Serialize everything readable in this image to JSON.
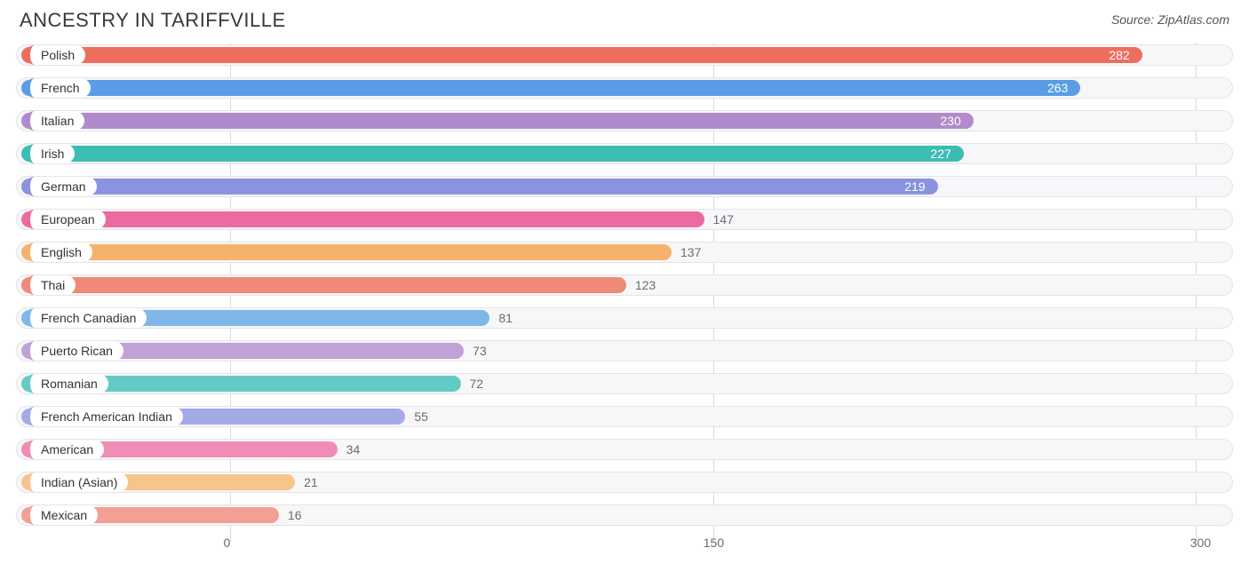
{
  "title": "ANCESTRY IN TARIFFVILLE",
  "source_label": "Source: ZipAtlas.com",
  "chart": {
    "type": "bar-horizontal",
    "x_min": -65,
    "x_max": 310,
    "track_bg": "#f7f7f9",
    "track_border": "#e4e4e8",
    "pill_bg": "#ffffff",
    "value_inside_color": "#ffffff",
    "value_outside_color": "#6b6b70",
    "title_color": "#38383a",
    "axis_color": "#6b6b70",
    "gridline_color": "#d9d9de",
    "title_fontsize": 22,
    "label_fontsize": 14,
    "ticks": [
      0,
      150,
      300
    ],
    "rows": [
      {
        "label": "Polish",
        "value": 282,
        "color": "#ed6e5f"
      },
      {
        "label": "French",
        "value": 263,
        "color": "#5a9de6"
      },
      {
        "label": "Italian",
        "value": 230,
        "color": "#b18acb"
      },
      {
        "label": "Irish",
        "value": 227,
        "color": "#3bbdb3"
      },
      {
        "label": "German",
        "value": 219,
        "color": "#8a93e0"
      },
      {
        "label": "European",
        "value": 147,
        "color": "#ed6aa0"
      },
      {
        "label": "English",
        "value": 137,
        "color": "#f4b36b"
      },
      {
        "label": "Thai",
        "value": 123,
        "color": "#ee8a77"
      },
      {
        "label": "French Canadian",
        "value": 81,
        "color": "#7fb7ea"
      },
      {
        "label": "Puerto Rican",
        "value": 73,
        "color": "#c0a2d6"
      },
      {
        "label": "Romanian",
        "value": 72,
        "color": "#63cbc3"
      },
      {
        "label": "French American Indian",
        "value": 55,
        "color": "#a3aae7"
      },
      {
        "label": "American",
        "value": 34,
        "color": "#f18db5"
      },
      {
        "label": "Indian (Asian)",
        "value": 21,
        "color": "#f6c48c"
      },
      {
        "label": "Mexican",
        "value": 16,
        "color": "#f1a093"
      }
    ]
  }
}
